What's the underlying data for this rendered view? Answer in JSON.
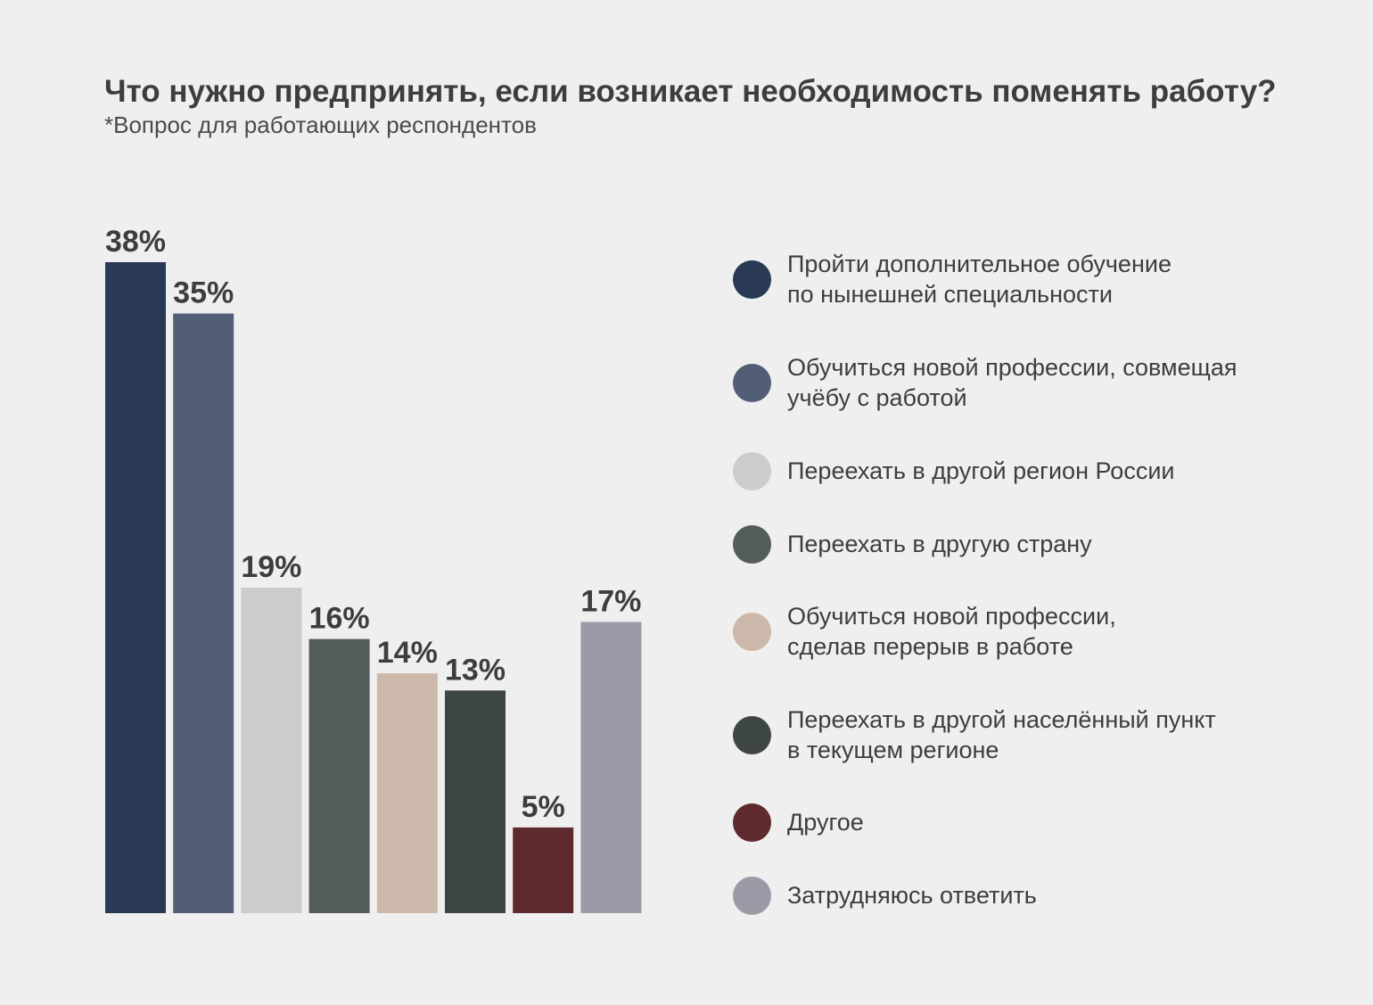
{
  "title": "Что нужно предпринять, если возникает необходимость поменять работу?",
  "subtitle": "*Вопрос для работающих респондентов",
  "chart_data": {
    "type": "bar",
    "title": "Что нужно предпринять, если возникает необходимость поменять работу?",
    "subtitle": "*Вопрос для работающих респондентов",
    "xlabel": "",
    "ylabel": "",
    "ylim": [
      0,
      38
    ],
    "grid": false,
    "legend_position": "right",
    "unit": "%",
    "categories": [
      "Пройти дополнительное обучение\nпо нынешней специальности",
      "Обучиться новой профессии, совмещая\nучёбу с работой",
      "Переехать в другой регион России",
      "Переехать в другую страну",
      "Обучиться новой профессии,\nсделав перерыв в работе",
      "Переехать в другой населённый пункт\nв текущем регионе",
      "Другое",
      "Затрудняюсь ответить"
    ],
    "values": [
      38,
      35,
      19,
      16,
      14,
      13,
      5,
      17
    ],
    "labels": [
      "38%",
      "35%",
      "19%",
      "16%",
      "14%",
      "13%",
      "5%",
      "17%"
    ],
    "colors": [
      "#2a3a55",
      "#525d76",
      "#cccccc",
      "#525c5a",
      "#cbb8aa",
      "#3e4545",
      "#5f2a2d",
      "#9d9aa8"
    ]
  }
}
